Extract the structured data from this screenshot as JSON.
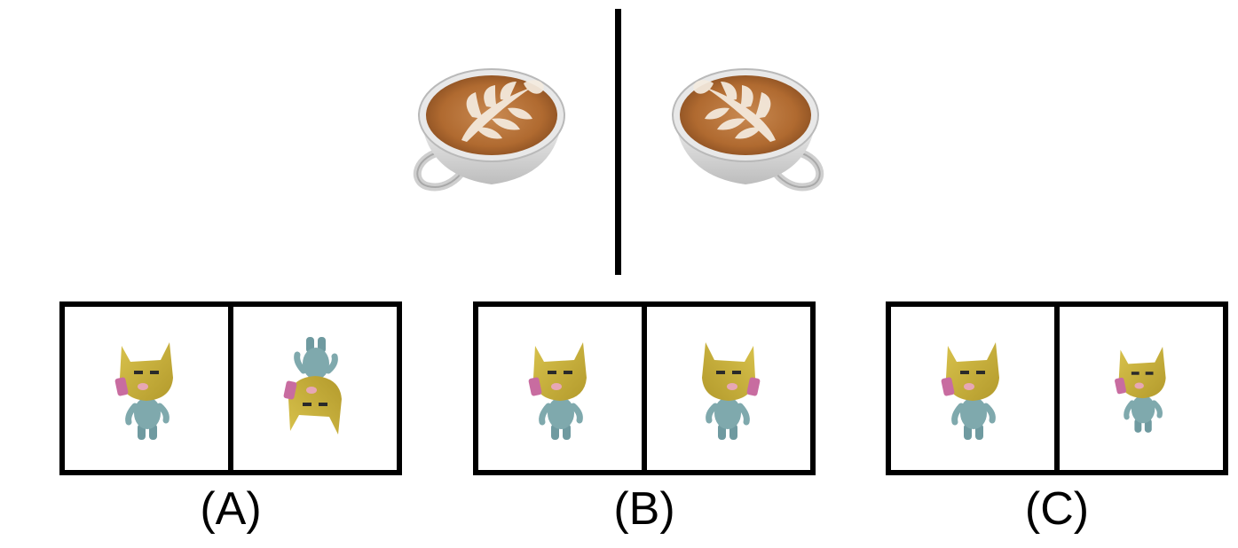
{
  "reference": {
    "left_image": "latte-cup-handle-left-icon",
    "right_image": "latte-cup-handle-right-icon"
  },
  "options": [
    {
      "label": "(A)",
      "left_figure": "cat-figure-upright",
      "right_figure": "cat-figure-upside-down"
    },
    {
      "label": "(B)",
      "left_figure": "cat-figure-upright",
      "right_figure": "cat-figure-upright-mirrored"
    },
    {
      "label": "(C)",
      "left_figure": "cat-figure-upright",
      "right_figure": "cat-figure-upright-smaller"
    }
  ],
  "colors": {
    "cat_head": "#c9b13a",
    "cat_body": "#7fa9ad",
    "cat_phone": "#c86ca0",
    "coffee": "#b9733a",
    "cup": "#e2e2e2"
  }
}
